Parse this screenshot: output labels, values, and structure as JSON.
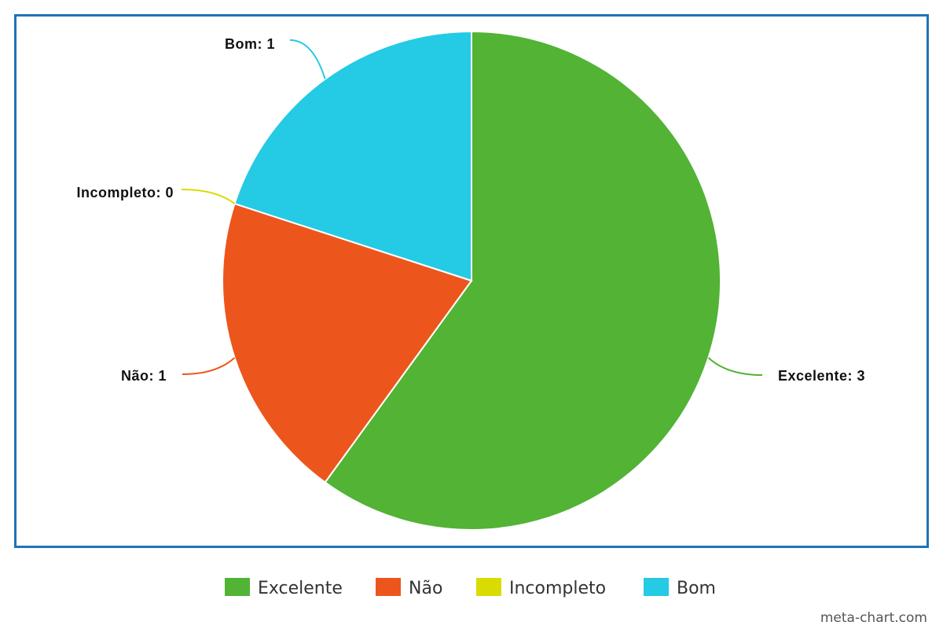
{
  "chart_data": {
    "type": "pie",
    "categories": [
      "Excelente",
      "Não",
      "Incompleto",
      "Bom"
    ],
    "values": [
      3,
      1,
      0,
      1
    ],
    "colors": [
      "#52b335",
      "#ec561d",
      "#d9dc00",
      "#25cae5"
    ],
    "data_labels": [
      "Excelente: 3",
      "Não: 1",
      "Incompleto: 0",
      "Bom: 1"
    ],
    "frame_color": "#1f73b7",
    "legend": "bottom"
  },
  "legend": {
    "items": [
      {
        "label": "Excelente",
        "color": "#52b335"
      },
      {
        "label": "Não",
        "color": "#ec561d"
      },
      {
        "label": "Incompleto",
        "color": "#d9dc00"
      },
      {
        "label": "Bom",
        "color": "#25cae5"
      }
    ]
  },
  "footer": {
    "watermark": "meta-chart.com"
  }
}
